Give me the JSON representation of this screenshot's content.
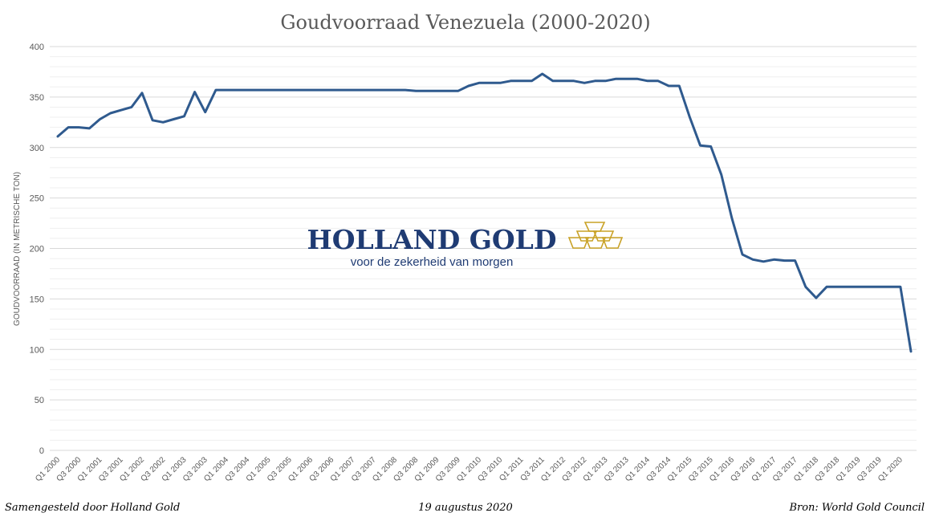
{
  "chart_data": {
    "type": "line",
    "title": "Goudvoorraad Venezuela (2000-2020)",
    "xlabel": "",
    "ylabel": "GOUDVOORRAAD (IN METRISCHE TON)",
    "ylim": [
      0,
      400
    ],
    "yticks": [
      0,
      50,
      100,
      150,
      200,
      250,
      300,
      350,
      400
    ],
    "grid": "horizontal",
    "categories": [
      "Q1 2000",
      "Q2 2000",
      "Q3 2000",
      "Q4 2000",
      "Q1 2001",
      "Q2 2001",
      "Q3 2001",
      "Q4 2001",
      "Q1 2002",
      "Q2 2002",
      "Q3 2002",
      "Q4 2002",
      "Q1 2003",
      "Q2 2003",
      "Q3 2003",
      "Q4 2003",
      "Q1 2004",
      "Q2 2004",
      "Q3 2004",
      "Q4 2004",
      "Q1 2005",
      "Q2 2005",
      "Q3 2005",
      "Q4 2005",
      "Q1 2006",
      "Q2 2006",
      "Q3 2006",
      "Q4 2006",
      "Q1 2007",
      "Q2 2007",
      "Q3 2007",
      "Q4 2007",
      "Q1 2008",
      "Q2 2008",
      "Q3 2008",
      "Q4 2008",
      "Q1 2009",
      "Q2 2009",
      "Q3 2009",
      "Q4 2009",
      "Q1 2010",
      "Q2 2010",
      "Q3 2010",
      "Q4 2010",
      "Q1 2011",
      "Q2 2011",
      "Q3 2011",
      "Q4 2011",
      "Q1 2012",
      "Q2 2012",
      "Q3 2012",
      "Q4 2012",
      "Q1 2013",
      "Q2 2013",
      "Q3 2013",
      "Q4 2013",
      "Q1 2014",
      "Q2 2014",
      "Q3 2014",
      "Q4 2014",
      "Q1 2015",
      "Q2 2015",
      "Q3 2015",
      "Q4 2015",
      "Q1 2016",
      "Q2 2016",
      "Q3 2016",
      "Q4 2016",
      "Q1 2017",
      "Q2 2017",
      "Q3 2017",
      "Q4 2017",
      "Q1 2018",
      "Q2 2018",
      "Q3 2018",
      "Q4 2018",
      "Q1 2019",
      "Q2 2019",
      "Q3 2019",
      "Q4 2019",
      "Q1 2020",
      "Q2 2020"
    ],
    "tick_labels": [
      "Q1 2000",
      "Q3 2000",
      "Q1 2001",
      "Q3 2001",
      "Q1 2002",
      "Q3 2002",
      "Q1 2003",
      "Q3 2003",
      "Q1 2004",
      "Q3 2004",
      "Q1 2005",
      "Q3 2005",
      "Q1 2006",
      "Q3 2006",
      "Q1 2007",
      "Q3 2007",
      "Q1 2008",
      "Q3 2008",
      "Q1 2009",
      "Q3 2009",
      "Q1 2010",
      "Q3 2010",
      "Q1 2011",
      "Q3 2011",
      "Q1 2012",
      "Q3 2012",
      "Q1 2013",
      "Q3 2013",
      "Q1 2014",
      "Q3 2014",
      "Q1 2015",
      "Q3 2015",
      "Q1 2016",
      "Q3 2016",
      "Q1 2017",
      "Q3 2017",
      "Q1 2018",
      "Q3 2018",
      "Q1 2019",
      "Q3 2019",
      "Q1 2020"
    ],
    "series": [
      {
        "color": "#2f5a8e",
        "values": [
          311,
          320,
          320,
          319,
          328,
          334,
          337,
          340,
          354,
          327,
          325,
          328,
          331,
          355,
          335,
          357,
          357,
          357,
          357,
          357,
          357,
          357,
          357,
          357,
          357,
          357,
          357,
          357,
          357,
          357,
          357,
          357,
          357,
          357,
          356,
          356,
          356,
          356,
          356,
          361,
          364,
          364,
          364,
          366,
          366,
          366,
          373,
          366,
          366,
          366,
          364,
          366,
          366,
          368,
          368,
          368,
          366,
          366,
          361,
          361,
          330,
          302,
          301,
          273,
          230,
          194,
          189,
          187,
          189,
          188,
          188,
          162,
          151,
          162,
          162,
          162,
          162,
          162,
          162,
          162,
          162,
          98
        ]
      }
    ]
  },
  "logo": {
    "name": "HOLLAND GOLD",
    "tagline": "voor de zekerheid van morgen"
  },
  "footer": {
    "left": "Samengesteld door Holland Gold",
    "center": "19 augustus 2020",
    "right": "Bron: World Gold Council"
  },
  "colors": {
    "line": "#2f5a8e",
    "logo_blue": "#1f3b73",
    "logo_gold": "#c9a227",
    "grid": "#d9d9d9"
  }
}
